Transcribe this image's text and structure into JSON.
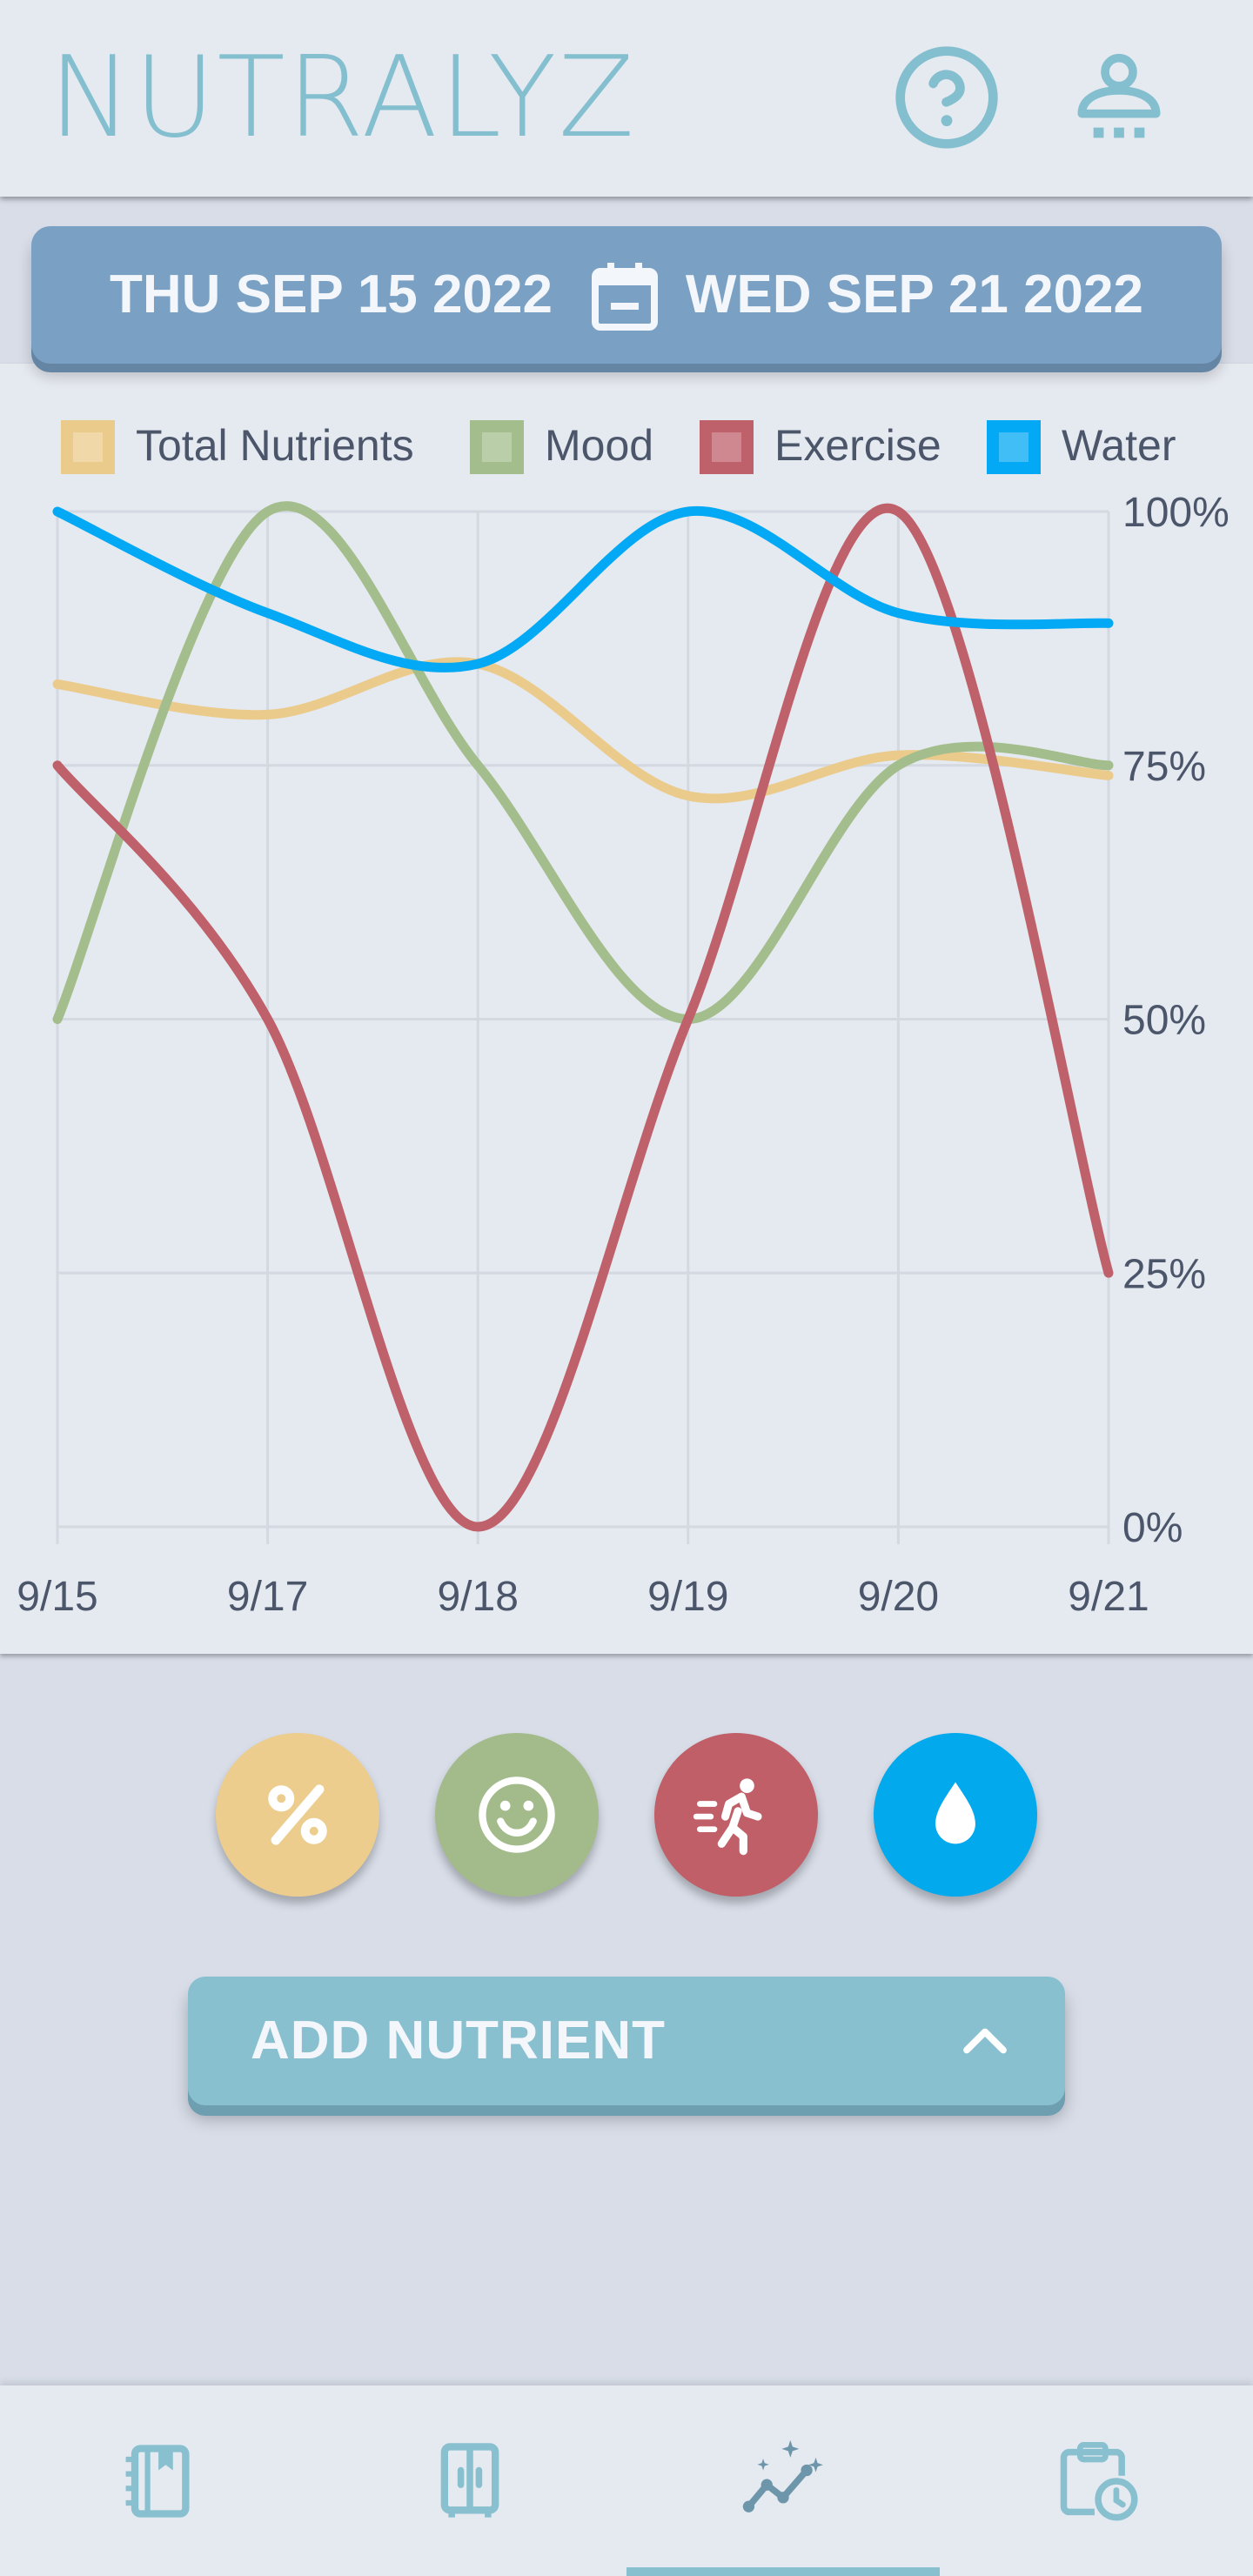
{
  "header": {
    "title": "NUTRALYZ",
    "help_icon": "help-circle-icon",
    "account_icon": "account-icon"
  },
  "date_range": {
    "start": "THU SEP 15 2022",
    "end": "WED SEP 21 2022",
    "icon": "calendar-icon"
  },
  "chart_data": {
    "type": "line",
    "categories": [
      "9/15",
      "9/17",
      "9/18",
      "9/19",
      "9/20",
      "9/21"
    ],
    "series": [
      {
        "name": "Total Nutrients",
        "color": "#ebcb8b",
        "values": [
          83,
          80,
          85,
          72,
          76,
          74
        ]
      },
      {
        "name": "Mood",
        "color": "#a3be8c",
        "values": [
          50,
          100,
          75,
          50,
          75,
          75
        ]
      },
      {
        "name": "Exercise",
        "color": "#bf616a",
        "values": [
          75,
          50,
          0,
          50,
          100,
          25
        ]
      },
      {
        "name": "Water",
        "color": "#03a9f4",
        "values": [
          100,
          90,
          85,
          100,
          90,
          89
        ]
      }
    ],
    "y_ticks": [
      "0%",
      "25%",
      "50%",
      "75%",
      "100%"
    ],
    "ylim": [
      0,
      100
    ],
    "legend_position": "top",
    "grid": true
  },
  "actions": {
    "nutrients_icon": "percent-icon",
    "mood_icon": "smiley-icon",
    "exercise_icon": "running-icon",
    "water_icon": "water-drop-icon"
  },
  "add_nutrient": {
    "label": "ADD NUTRIENT",
    "icon": "chevron-up-icon"
  },
  "bottom_nav": {
    "items": [
      {
        "icon": "notebook-icon",
        "active": false
      },
      {
        "icon": "pantry-icon",
        "active": false
      },
      {
        "icon": "trends-icon",
        "active": true
      },
      {
        "icon": "schedule-icon",
        "active": false
      }
    ]
  }
}
